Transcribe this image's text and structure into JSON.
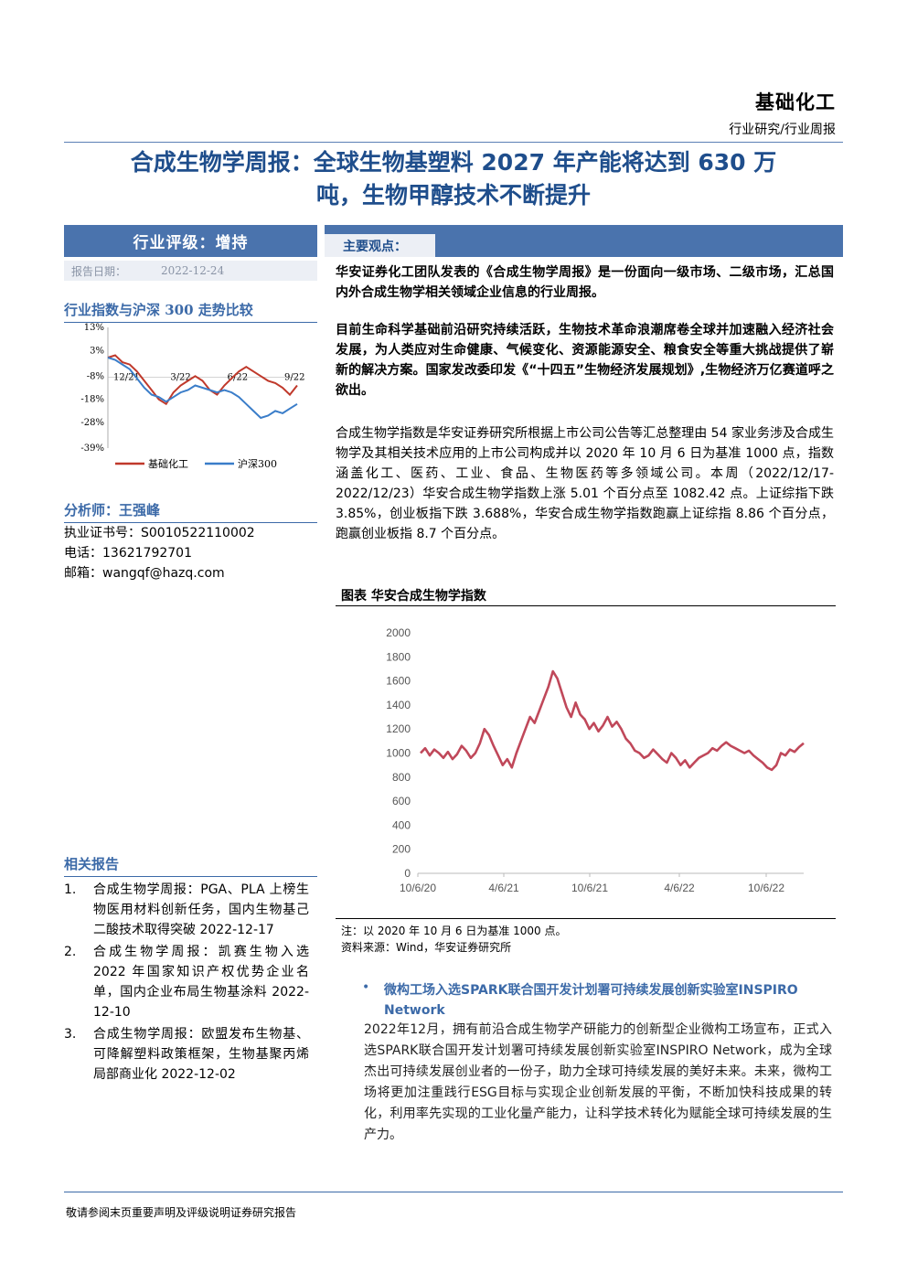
{
  "header": {
    "sector": "基础化工",
    "report_type": "行业研究/行业周报"
  },
  "title": {
    "line1": "合成生物学周报：全球生物基塑料 2027 年产能将达到 630 万",
    "line2": "吨，生物甲醇技术不断提升"
  },
  "rating": {
    "label": "行业评级：增持",
    "date_label": "报告日期：",
    "date_value": "2022-12-24"
  },
  "index_section": {
    "heading": "行业指数与沪深 300 走势比较"
  },
  "analyst": {
    "heading": "分析师：王强峰",
    "license": "执业证书号：S0010522110002",
    "phone": "电话：13621792701",
    "email": "邮箱：wangqf@hazq.com"
  },
  "related": {
    "heading": "相关报告",
    "items": [
      {
        "num": "1.",
        "text": "合成生物学周报：PGA、PLA 上榜生物医用材料创新任务，国内生物基己二酸技术取得突破 2022-12-17"
      },
      {
        "num": "2.",
        "text": "合成生物学周报：凯赛生物入选 2022 年国家知识产权优势企业名单，国内企业布局生物基涂料 2022-12-10"
      },
      {
        "num": "3.",
        "text": "合成生物学周报：欧盟发布生物基、可降解塑料政策框架，生物基聚丙烯局部商业化 2022-12-02"
      }
    ]
  },
  "main": {
    "section_label": "主要观点：",
    "p1": "华安证券化工团队发表的《合成生物学周报》是一份面向一级市场、二级市场，汇总国内外合成生物学相关领域企业信息的行业周报。",
    "p2": "目前生命科学基础前沿研究持续活跃，生物技术革命浪潮席卷全球并加速融入经济社会发展，为人类应对生命健康、气候变化、资源能源安全、粮食安全等重大挑战提供了崭新的解决方案。国家发改委印发《“十四五”生物经济发展规划》,生物经济万亿赛道呼之欲出。",
    "p3": "合成生物学指数是华安证券研究所根据上市公司公告等汇总整理由 54 家业务涉及合成生物学及其相关技术应用的上市公司构成并以 2020 年 10 月 6 日为基准 1000 点，指数涵盖化工、医药、工业、食品、生物医药等多领域公司。本周（2022/12/17-2022/12/23）华安合成生物学指数上涨 5.01 个百分点至 1082.42 点。上证综指下跌 3.85%，创业板指下跌 3.688%，华安合成生物学指数跑赢上证综指 8.86 个百分点，跑赢创业板指 8.7 个百分点。",
    "figure_title": "图表 华安合成生物学指数",
    "figure_note": "注：以 2020 年 10 月 6 日为基准 1000 点。",
    "figure_source": "资料来源：Wind，华安证券研究所",
    "news_bullet": "•",
    "news_title": "微构工场入选SPARK联合国开发计划署可持续发展创新实验室INSPIRO Network",
    "news_body": "2022年12月，拥有前沿合成生物学产研能力的创新型企业微构工场宣布，正式入选SPARK联合国开发计划署可持续发展创新实验室INSPIRO Network，成为全球杰出可持续发展创业者的一份子，助力全球可持续发展的美好未来。未来，微构工场将更加注重践行ESG目标与实现企业创新发展的平衡，不断加快科技成果的转化，利用率先实现的工业化量产能力，让科学技术转化为赋能全球可持续发展的生产力。"
  },
  "footer": {
    "text": "敬请参阅末页重要声明及评级说明证券研究报告"
  },
  "chart_data": [
    {
      "type": "line",
      "x_ticks": [
        "12/21",
        "3/22",
        "6/22",
        "9/22"
      ],
      "y_ticks": [
        "13%",
        "3%",
        "-8%",
        "-18%",
        "-28%",
        "-39%"
      ],
      "ylim": [
        -39,
        13
      ],
      "series": [
        {
          "name": "基础化工",
          "color": "#c0392b",
          "values": [
            0,
            1,
            -2,
            -3,
            -6,
            -10,
            -14,
            -18,
            -20,
            -15,
            -12,
            -10,
            -8,
            -10,
            -14,
            -16,
            -12,
            -9,
            -6,
            -4,
            -6,
            -8,
            -10,
            -11,
            -13,
            -16,
            -12
          ]
        },
        {
          "name": "沪深300",
          "color": "#3a7dc9",
          "values": [
            0,
            -1,
            -3,
            -5,
            -9,
            -13,
            -16,
            -17,
            -19,
            -17,
            -15,
            -14,
            -12,
            -13,
            -14,
            -15,
            -14,
            -15,
            -17,
            -20,
            -23,
            -26,
            -25,
            -23,
            -24,
            -22,
            -20
          ]
        }
      ]
    },
    {
      "type": "line",
      "title": "图表 华安合成生物学指数",
      "x_ticks": [
        "10/6/20",
        "4/6/21",
        "10/6/21",
        "4/6/22",
        "10/6/22"
      ],
      "y_ticks": [
        0,
        200,
        400,
        600,
        800,
        1000,
        1200,
        1400,
        1600,
        1800,
        2000
      ],
      "ylim": [
        0,
        2000
      ],
      "series": [
        {
          "name": "华安合成生物学指数",
          "color": "#c0485a",
          "values": [
            1000,
            1040,
            980,
            1030,
            1000,
            960,
            1010,
            950,
            990,
            1060,
            1020,
            960,
            1000,
            1080,
            1200,
            1150,
            1060,
            980,
            900,
            950,
            880,
            1000,
            1100,
            1200,
            1300,
            1250,
            1350,
            1450,
            1550,
            1680,
            1620,
            1500,
            1380,
            1300,
            1420,
            1320,
            1280,
            1200,
            1250,
            1180,
            1230,
            1300,
            1220,
            1260,
            1200,
            1120,
            1080,
            1020,
            1000,
            960,
            980,
            1030,
            990,
            950,
            920,
            1000,
            960,
            900,
            940,
            880,
            920,
            960,
            980,
            1000,
            1040,
            1020,
            1060,
            1090,
            1060,
            1040,
            1020,
            1000,
            1020,
            980,
            950,
            920,
            880,
            860,
            900,
            1000,
            980,
            1030,
            1010,
            1050,
            1082
          ]
        }
      ]
    }
  ]
}
